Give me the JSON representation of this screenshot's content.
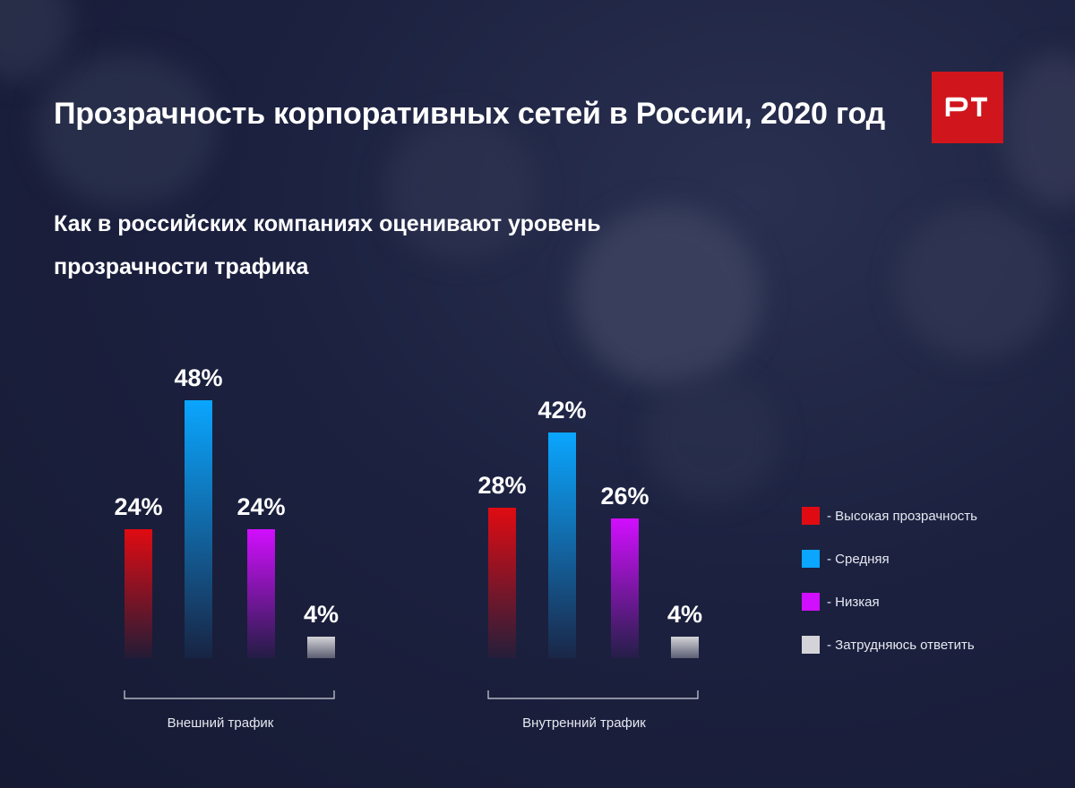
{
  "title": "Прозрачность корпоративных сетей в России, 2020 год",
  "subtitle": "Как в российских компаниях оценивают уровень прозрачности трафика",
  "logo_text": "PT",
  "colors": {
    "high": "#e00b12",
    "medium": "#0aa6ff",
    "low": "#d20eff",
    "unsure": "#d4d4d8",
    "logo": "#d0151c"
  },
  "legend": [
    {
      "label": "- Высокая прозрачность",
      "color": "#e00b12"
    },
    {
      "label": "- Средняя",
      "color": "#0aa6ff"
    },
    {
      "label": "- Низкая",
      "color": "#d20eff"
    },
    {
      "label": "- Затрудняюсь ответить",
      "color": "#d4d4d8"
    }
  ],
  "chart_data": {
    "type": "bar",
    "categories": [
      "Внешний трафик",
      "Внутренний трафик"
    ],
    "series": [
      {
        "name": "Высокая прозрачность",
        "values": [
          24,
          28
        ],
        "labels": [
          "24%",
          "28%"
        ]
      },
      {
        "name": "Средняя",
        "values": [
          48,
          42
        ],
        "labels": [
          "48%",
          "42%"
        ]
      },
      {
        "name": "Низкая",
        "values": [
          24,
          26
        ],
        "labels": [
          "24%",
          "26%"
        ]
      },
      {
        "name": "Затрудняюсь ответить",
        "values": [
          4,
          4
        ],
        "labels": [
          "4%",
          "4%"
        ]
      }
    ],
    "unit": "%",
    "legend_position": "right",
    "grid": false
  }
}
